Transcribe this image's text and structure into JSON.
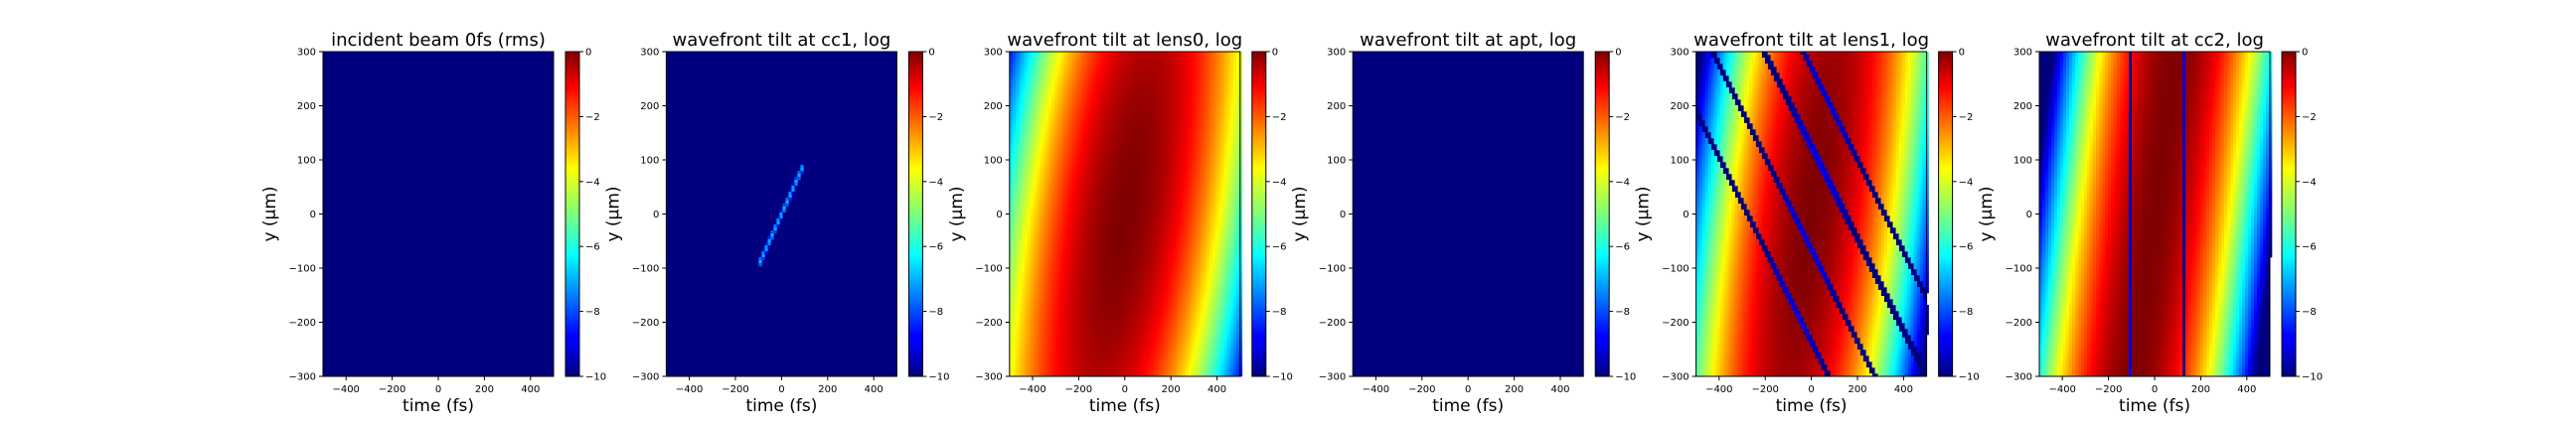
{
  "colormap": "jet",
  "colors": {
    "background": "#ffffff",
    "frame": "#000000",
    "zero_level": "#00007f"
  },
  "chart_data": [
    {
      "type": "heatmap",
      "title": "incident beam 0fs (rms)",
      "xlabel": "time (fs)",
      "ylabel": "y (μm)",
      "xlim": [
        -500,
        500
      ],
      "ylim": [
        -300,
        300
      ],
      "xticks": [
        -400,
        -200,
        0,
        200,
        400
      ],
      "yticks": [
        -300,
        -200,
        -100,
        0,
        100,
        200,
        300
      ],
      "colorbar": {
        "range": [
          -10,
          0
        ],
        "ticks": [
          0,
          -2,
          -4,
          -6,
          -8,
          -10
        ]
      },
      "pattern": "empty"
    },
    {
      "type": "heatmap",
      "title": "wavefront tilt at cc1, log",
      "xlabel": "time (fs)",
      "ylabel": "y (μm)",
      "xlim": [
        -500,
        500
      ],
      "ylim": [
        -300,
        300
      ],
      "xticks": [
        -400,
        -200,
        0,
        200,
        400
      ],
      "yticks": [
        -300,
        -200,
        -100,
        0,
        100,
        200,
        300
      ],
      "colorbar": {
        "range": [
          -10,
          0
        ],
        "ticks": [
          0,
          -2,
          -4,
          -6,
          -8,
          -10
        ]
      },
      "pattern": "line",
      "line": {
        "from": [
          -100,
          -95
        ],
        "to": [
          100,
          95
        ]
      }
    },
    {
      "type": "heatmap",
      "title": "wavefront tilt at lens0, log",
      "xlabel": "time (fs)",
      "ylabel": "y (μm)",
      "xlim": [
        -500,
        500
      ],
      "ylim": [
        -300,
        300
      ],
      "xticks": [
        -400,
        -200,
        0,
        200,
        400
      ],
      "yticks": [
        -300,
        -200,
        -100,
        0,
        100,
        200,
        300
      ],
      "colorbar": {
        "range": [
          -10,
          0
        ],
        "ticks": [
          0,
          -2,
          -4,
          -6,
          -8,
          -10
        ]
      },
      "pattern": "blob",
      "blob": {
        "center": [
          0,
          0
        ],
        "tilt": 0.35,
        "width_fs": 140,
        "height_um": 280
      }
    },
    {
      "type": "heatmap",
      "title": "wavefront tilt at apt, log",
      "xlabel": "time (fs)",
      "ylabel": "y (μm)",
      "xlim": [
        -500,
        500
      ],
      "ylim": [
        -300,
        300
      ],
      "xticks": [
        -400,
        -200,
        0,
        200,
        400
      ],
      "yticks": [
        -300,
        -200,
        -100,
        0,
        100,
        200,
        300
      ],
      "colorbar": {
        "range": [
          -10,
          0
        ],
        "ticks": [
          0,
          -2,
          -4,
          -6,
          -8,
          -10
        ]
      },
      "pattern": "empty"
    },
    {
      "type": "heatmap",
      "title": "wavefront tilt at lens1, log",
      "xlabel": "time (fs)",
      "ylabel": "y (μm)",
      "xlim": [
        -500,
        500
      ],
      "ylim": [
        -300,
        300
      ],
      "xticks": [
        -400,
        -200,
        0,
        200,
        400
      ],
      "yticks": [
        -300,
        -200,
        -100,
        0,
        100,
        200,
        300
      ],
      "colorbar": {
        "range": [
          -10,
          0
        ],
        "ticks": [
          0,
          -2,
          -4,
          -6,
          -8,
          -10
        ]
      },
      "pattern": "segments",
      "segments": {
        "tilt": 0.3,
        "width_fs": 120,
        "height_um": 340,
        "cut_lines_y": [
          -300,
          -150,
          150,
          300
        ],
        "cut_slope": -0.85
      }
    },
    {
      "type": "heatmap",
      "title": "wavefront tilt at cc2, log",
      "xlabel": "time (fs)",
      "ylabel": "y (μm)",
      "xlim": [
        -500,
        500
      ],
      "ylim": [
        -300,
        300
      ],
      "xticks": [
        -400,
        -200,
        0,
        200,
        400
      ],
      "yticks": [
        -300,
        -200,
        -100,
        0,
        100,
        200,
        300
      ],
      "colorbar": {
        "range": [
          -10,
          0
        ],
        "ticks": [
          0,
          -2,
          -4,
          -6,
          -8,
          -10
        ]
      },
      "pattern": "stripe",
      "stripe": {
        "tilt": 0.3,
        "width_fs": 110,
        "cut_x": [
          -110,
          130
        ]
      }
    }
  ]
}
